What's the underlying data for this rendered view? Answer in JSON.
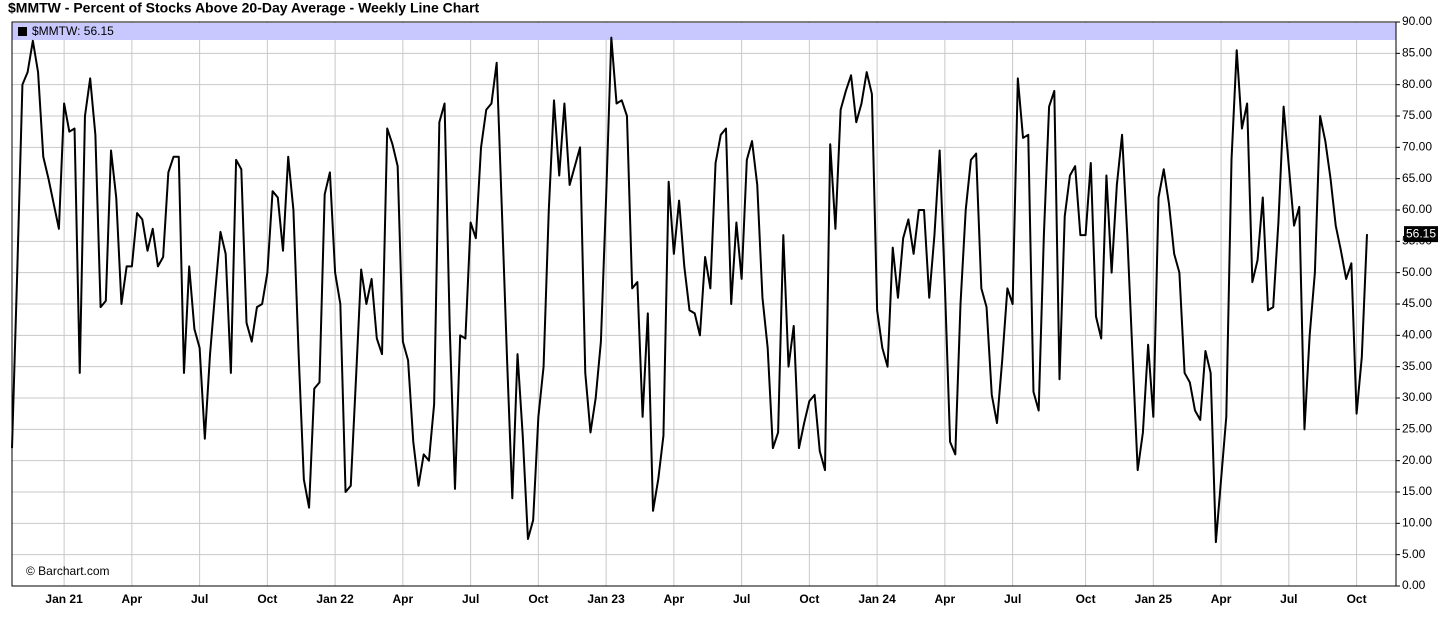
{
  "chart_data": {
    "type": "line",
    "title": "$MMTW - Percent of Stocks Above 20-Day Average - Weekly Line Chart",
    "legend_text": "$MMTW: 56.15",
    "watermark": "© Barchart.com",
    "categories": [
      null,
      null,
      null,
      null,
      null,
      null,
      null,
      null,
      null,
      null,
      "Jan 21",
      null,
      null,
      null,
      null,
      null,
      null,
      null,
      null,
      null,
      null,
      null,
      null,
      "Apr",
      null,
      null,
      null,
      null,
      null,
      null,
      null,
      null,
      null,
      null,
      null,
      null,
      "Jul",
      null,
      null,
      null,
      null,
      null,
      null,
      null,
      null,
      null,
      null,
      null,
      null,
      "Oct",
      null,
      null,
      null,
      null,
      null,
      null,
      null,
      null,
      null,
      null,
      null,
      null,
      "Jan 22",
      null,
      null,
      null,
      null,
      null,
      null,
      null,
      null,
      null,
      null,
      null,
      null,
      "Apr",
      null,
      null,
      null,
      null,
      null,
      null,
      null,
      null,
      null,
      null,
      null,
      null,
      "Jul",
      null,
      null,
      null,
      null,
      null,
      null,
      null,
      null,
      null,
      null,
      null,
      null,
      "Oct",
      null,
      null,
      null,
      null,
      null,
      null,
      null,
      null,
      null,
      null,
      null,
      null,
      "Jan 23",
      null,
      null,
      null,
      null,
      null,
      null,
      null,
      null,
      null,
      null,
      null,
      null,
      "Apr",
      null,
      null,
      null,
      null,
      null,
      null,
      null,
      null,
      null,
      null,
      null,
      null,
      "Jul",
      null,
      null,
      null,
      null,
      null,
      null,
      null,
      null,
      null,
      null,
      null,
      null,
      "Oct",
      null,
      null,
      null,
      null,
      null,
      null,
      null,
      null,
      null,
      null,
      null,
      null,
      "Jan 24",
      null,
      null,
      null,
      null,
      null,
      null,
      null,
      null,
      null,
      null,
      null,
      null,
      "Apr",
      null,
      null,
      null,
      null,
      null,
      null,
      null,
      null,
      null,
      null,
      null,
      null,
      "Jul",
      null,
      null,
      null,
      null,
      null,
      null,
      null,
      null,
      null,
      null,
      null,
      null,
      null,
      "Oct",
      null,
      null,
      null,
      null,
      null,
      null,
      null,
      null,
      null,
      null,
      null,
      null,
      "Jan 25",
      null,
      null,
      null,
      null,
      null,
      null,
      null,
      null,
      null,
      null,
      null,
      null,
      "Apr",
      null,
      null,
      null,
      null,
      null,
      null,
      null,
      null,
      null,
      null,
      null,
      null,
      "Jul",
      null,
      null,
      null,
      null,
      null,
      null,
      null,
      null,
      null,
      null,
      null,
      null,
      "Oct",
      null,
      null
    ],
    "series": [
      {
        "name": "$MMTW",
        "color": "#000000",
        "values": [
          22,
          50,
          80,
          82,
          87,
          82,
          68.5,
          65,
          61,
          57,
          77,
          72.5,
          73,
          34,
          75,
          81,
          72,
          44.5,
          45.5,
          69.5,
          62,
          45,
          51,
          51,
          59.5,
          58.5,
          53.5,
          57,
          51,
          52.5,
          66,
          68.5,
          68.5,
          34,
          51,
          41,
          38,
          23.5,
          37,
          47,
          56.5,
          53,
          34,
          68,
          66.5,
          42,
          39,
          44.5,
          45,
          50,
          63,
          62,
          53.5,
          68.5,
          60,
          37,
          17,
          12.5,
          31.5,
          32.5,
          62.5,
          66,
          50,
          45,
          15,
          16,
          33,
          50.5,
          45,
          49,
          39.5,
          37,
          73,
          70.5,
          67,
          39,
          36,
          23,
          16,
          21,
          20,
          29,
          74,
          77,
          41,
          15.5,
          40,
          39.5,
          58,
          55.5,
          70,
          76,
          77,
          83.5,
          60,
          36,
          14,
          37,
          24,
          7.5,
          10.5,
          27,
          35,
          60,
          77.5,
          65.5,
          77,
          64,
          67,
          70,
          34,
          24.5,
          30,
          39,
          62,
          87.5,
          77,
          77.5,
          75,
          47.5,
          48.5,
          27,
          43.5,
          12,
          17,
          24,
          64.5,
          53,
          61.5,
          51,
          44,
          43.5,
          40,
          52.5,
          47.5,
          67.5,
          72,
          73,
          45,
          58,
          49,
          68,
          71,
          64,
          46,
          38,
          22,
          24.5,
          56,
          35,
          41.5,
          22,
          26,
          29.5,
          30.5,
          21.5,
          18.5,
          70.5,
          57,
          76,
          79,
          81.5,
          74,
          77,
          82,
          78.5,
          44,
          38,
          35,
          54,
          46,
          55.5,
          58.5,
          53,
          60,
          60,
          46,
          56,
          69.5,
          48,
          23,
          21,
          45,
          60,
          68,
          69,
          47.5,
          44.5,
          30.5,
          26,
          36,
          47.5,
          45,
          81,
          71.5,
          72,
          31,
          28,
          56,
          76.5,
          79,
          33,
          59,
          65.5,
          67,
          56,
          56,
          67.5,
          43,
          39.5,
          65.5,
          50,
          64,
          72,
          56,
          37,
          18.5,
          24.5,
          38.5,
          27,
          62,
          66.5,
          61,
          53,
          50,
          34,
          32.5,
          28,
          26.5,
          37.5,
          34,
          7,
          17,
          27,
          68,
          85.5,
          73,
          77,
          48.5,
          52,
          62,
          44,
          44.5,
          58,
          76.5,
          67,
          57.5,
          60.5,
          25,
          40,
          50,
          75,
          71,
          65,
          57.5,
          53.5,
          49,
          51.5,
          27.5,
          36.5,
          56.15
        ]
      }
    ],
    "ylim": [
      0,
      90
    ],
    "yticks": [
      {
        "value": 0,
        "label": "0.00"
      },
      {
        "value": 5,
        "label": "5.00"
      },
      {
        "value": 10,
        "label": "10.00"
      },
      {
        "value": 15,
        "label": "15.00"
      },
      {
        "value": 20,
        "label": "20.00"
      },
      {
        "value": 25,
        "label": "25.00"
      },
      {
        "value": 30,
        "label": "30.00"
      },
      {
        "value": 35,
        "label": "35.00"
      },
      {
        "value": 40,
        "label": "40.00"
      },
      {
        "value": 45,
        "label": "45.00"
      },
      {
        "value": 50,
        "label": "50.00"
      },
      {
        "value": 55,
        "label": "55.00"
      },
      {
        "value": 60,
        "label": "60.00"
      },
      {
        "value": 65,
        "label": "65.00"
      },
      {
        "value": 70,
        "label": "70.00"
      },
      {
        "value": 75,
        "label": "75.00"
      },
      {
        "value": 80,
        "label": "80.00"
      },
      {
        "value": 85,
        "label": "85.00"
      },
      {
        "value": 90,
        "label": "90.00"
      }
    ],
    "grid": true,
    "legend_color": "#c8c8ff"
  }
}
